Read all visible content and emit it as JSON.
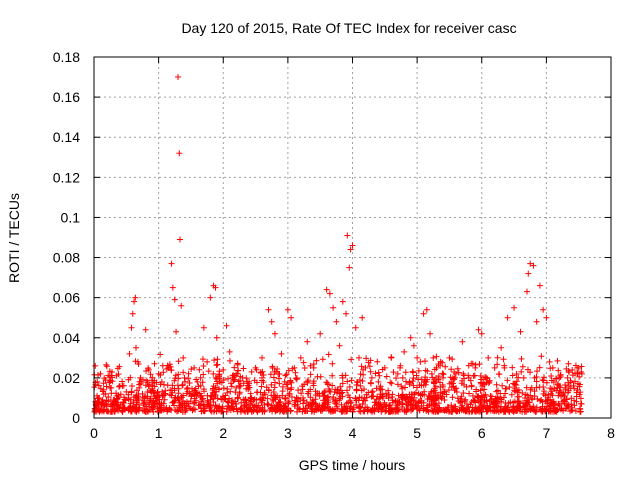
{
  "chart_data": {
    "type": "scatter",
    "title": "Day 120 of 2015, Rate Of TEC Index for receiver casc",
    "xlabel": "GPS time / hours",
    "ylabel": "ROTI / TECUs",
    "xlim": [
      0,
      8
    ],
    "ylim": [
      0,
      0.18
    ],
    "xticks": [
      0,
      1,
      2,
      3,
      4,
      5,
      6,
      7,
      8
    ],
    "yticks": [
      0,
      0.02,
      0.04,
      0.06,
      0.08,
      0.1,
      0.12,
      0.14,
      0.16,
      0.18
    ],
    "xtick_labels": [
      "0",
      "1",
      "2",
      "3",
      "4",
      "5",
      "6",
      "7",
      "8"
    ],
    "ytick_labels": [
      "0",
      "0.02",
      "0.04",
      "0.06",
      "0.08",
      "0.1",
      "0.12",
      "0.14",
      "0.16",
      "0.18"
    ],
    "grid": true,
    "marker": "+",
    "color": "#ff0000",
    "series": [
      {
        "name": "ROTI",
        "x": [
          0.02,
          0.05,
          0.08,
          0.1,
          0.12,
          0.15,
          0.18,
          0.2,
          0.25,
          0.3,
          0.35,
          0.4,
          0.45,
          0.5,
          0.55,
          0.58,
          0.6,
          0.62,
          0.64,
          0.65,
          0.68,
          0.7,
          0.72,
          0.75,
          0.8,
          0.85,
          0.9,
          0.95,
          1.0,
          1.05,
          1.1,
          1.15,
          1.2,
          1.22,
          1.25,
          1.27,
          1.3,
          1.32,
          1.33,
          1.35,
          1.38,
          1.4,
          1.45,
          1.5,
          1.55,
          1.6,
          1.65,
          1.7,
          1.75,
          1.8,
          1.85,
          1.88,
          1.9,
          1.95,
          2.0,
          2.05,
          2.1,
          2.15,
          2.2,
          2.25,
          2.3,
          2.4,
          2.5,
          2.6,
          2.7,
          2.75,
          2.8,
          2.85,
          2.9,
          2.95,
          3.0,
          3.05,
          3.1,
          3.2,
          3.3,
          3.4,
          3.5,
          3.6,
          3.65,
          3.7,
          3.75,
          3.8,
          3.85,
          3.9,
          3.92,
          3.95,
          3.97,
          4.0,
          4.05,
          4.1,
          4.15,
          4.2,
          4.3,
          4.4,
          4.5,
          4.6,
          4.7,
          4.8,
          4.9,
          4.95,
          5.0,
          5.05,
          5.1,
          5.15,
          5.2,
          5.25,
          5.3,
          5.4,
          5.5,
          5.6,
          5.7,
          5.8,
          5.9,
          5.95,
          6.0,
          6.1,
          6.2,
          6.3,
          6.35,
          6.4,
          6.5,
          6.6,
          6.65,
          6.7,
          6.72,
          6.75,
          6.8,
          6.85,
          6.9,
          6.95,
          7.0,
          7.05,
          7.1,
          7.2,
          7.3,
          7.4,
          7.5,
          7.55
        ],
        "y": [
          0.026,
          0.018,
          0.01,
          0.022,
          0.008,
          0.014,
          0.012,
          0.006,
          0.015,
          0.009,
          0.011,
          0.016,
          0.008,
          0.013,
          0.032,
          0.045,
          0.052,
          0.058,
          0.06,
          0.035,
          0.028,
          0.015,
          0.02,
          0.012,
          0.044,
          0.024,
          0.016,
          0.01,
          0.022,
          0.018,
          0.012,
          0.025,
          0.077,
          0.065,
          0.059,
          0.043,
          0.17,
          0.132,
          0.089,
          0.056,
          0.03,
          0.02,
          0.015,
          0.012,
          0.025,
          0.018,
          0.02,
          0.045,
          0.028,
          0.06,
          0.066,
          0.065,
          0.04,
          0.018,
          0.024,
          0.046,
          0.033,
          0.02,
          0.015,
          0.012,
          0.02,
          0.018,
          0.025,
          0.03,
          0.054,
          0.048,
          0.042,
          0.022,
          0.032,
          0.018,
          0.054,
          0.05,
          0.025,
          0.03,
          0.038,
          0.025,
          0.042,
          0.064,
          0.062,
          0.055,
          0.048,
          0.036,
          0.058,
          0.052,
          0.091,
          0.075,
          0.084,
          0.086,
          0.045,
          0.03,
          0.05,
          0.025,
          0.02,
          0.018,
          0.025,
          0.03,
          0.022,
          0.033,
          0.04,
          0.036,
          0.03,
          0.028,
          0.052,
          0.054,
          0.042,
          0.03,
          0.025,
          0.02,
          0.03,
          0.022,
          0.038,
          0.02,
          0.025,
          0.044,
          0.042,
          0.03,
          0.025,
          0.035,
          0.025,
          0.05,
          0.055,
          0.043,
          0.02,
          0.063,
          0.072,
          0.077,
          0.076,
          0.048,
          0.066,
          0.054,
          0.05,
          0.028,
          0.025,
          0.02,
          0.015,
          0.024,
          0.025,
          0.022
        ]
      }
    ],
    "notes": "Dense scatter of several thousand points; x and y above are representative points only. Points span 0 to 7.55 h with a dense background band between ~0.002 and ~0.03 TECU/min."
  }
}
